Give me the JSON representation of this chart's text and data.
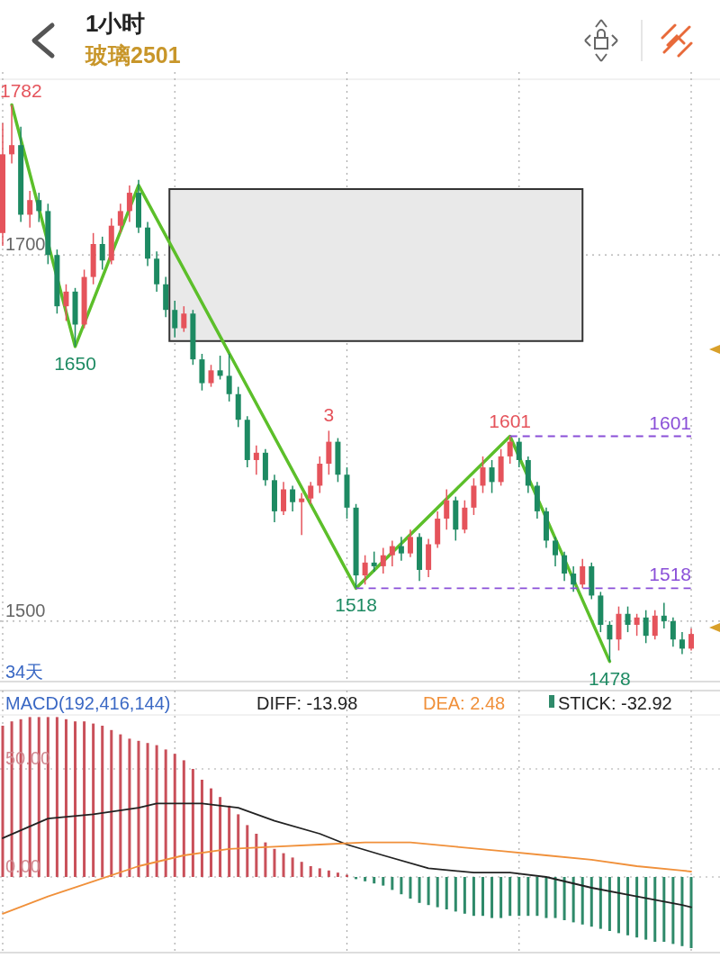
{
  "chart_data": [
    {
      "type": "candlestick",
      "title": "1小时",
      "subtitle": "玻璃2501",
      "categories": [
        null,
        null,
        null,
        null,
        null,
        null,
        null,
        null,
        null,
        null,
        null,
        null,
        null,
        null,
        null,
        null,
        null,
        null,
        null,
        null,
        null,
        null,
        null,
        null,
        null,
        null,
        null,
        null,
        null,
        null,
        null,
        null,
        null,
        null,
        null,
        null,
        null,
        null,
        null,
        null,
        null,
        null,
        null,
        null,
        null,
        null,
        null,
        null,
        null,
        null,
        null,
        null,
        null,
        null,
        null,
        null,
        null,
        null,
        null,
        null,
        null,
        null,
        null,
        null,
        null,
        null,
        null,
        null,
        null,
        null,
        null,
        null,
        null,
        null,
        null,
        null,
        null
      ],
      "ohlc": [
        [
          1712,
          1772,
          1705,
          1755
        ],
        [
          1755,
          1782,
          1750,
          1760
        ],
        [
          1760,
          1770,
          1718,
          1722
        ],
        [
          1722,
          1735,
          1715,
          1730
        ],
        [
          1730,
          1734,
          1718,
          1724
        ],
        [
          1724,
          1728,
          1695,
          1700
        ],
        [
          1700,
          1703,
          1668,
          1672
        ],
        [
          1672,
          1684,
          1664,
          1680
        ],
        [
          1680,
          1682,
          1650,
          1662
        ],
        [
          1662,
          1692,
          1660,
          1688
        ],
        [
          1688,
          1712,
          1684,
          1706
        ],
        [
          1706,
          1710,
          1692,
          1697
        ],
        [
          1697,
          1720,
          1695,
          1716
        ],
        [
          1716,
          1728,
          1712,
          1724
        ],
        [
          1724,
          1738,
          1718,
          1734
        ],
        [
          1734,
          1741,
          1712,
          1715
        ],
        [
          1715,
          1718,
          1694,
          1698
        ],
        [
          1698,
          1702,
          1680,
          1684
        ],
        [
          1684,
          1688,
          1666,
          1670
        ],
        [
          1670,
          1675,
          1655,
          1660
        ],
        [
          1660,
          1672,
          1658,
          1668
        ],
        [
          1668,
          1670,
          1640,
          1643
        ],
        [
          1643,
          1646,
          1626,
          1630
        ],
        [
          1630,
          1640,
          1628,
          1637
        ],
        [
          1637,
          1645,
          1632,
          1634
        ],
        [
          1634,
          1646,
          1620,
          1624
        ],
        [
          1624,
          1628,
          1606,
          1610
        ],
        [
          1610,
          1612,
          1584,
          1588
        ],
        [
          1588,
          1596,
          1580,
          1592
        ],
        [
          1592,
          1594,
          1574,
          1577
        ],
        [
          1577,
          1580,
          1554,
          1560
        ],
        [
          1560,
          1576,
          1558,
          1572
        ],
        [
          1572,
          1574,
          1560,
          1565
        ],
        [
          1565,
          1570,
          1547,
          1567
        ],
        [
          1567,
          1576,
          1564,
          1574
        ],
        [
          1574,
          1590,
          1570,
          1586
        ],
        [
          1586,
          1604,
          1580,
          1598
        ],
        [
          1598,
          1600,
          1576,
          1580
        ],
        [
          1580,
          1584,
          1556,
          1562
        ],
        [
          1562,
          1564,
          1518,
          1525
        ],
        [
          1525,
          1536,
          1520,
          1532
        ],
        [
          1532,
          1538,
          1527,
          1530
        ],
        [
          1530,
          1540,
          1526,
          1536
        ],
        [
          1536,
          1544,
          1530,
          1541
        ],
        [
          1541,
          1546,
          1533,
          1537
        ],
        [
          1537,
          1550,
          1535,
          1546
        ],
        [
          1546,
          1548,
          1522,
          1528
        ],
        [
          1528,
          1545,
          1524,
          1542
        ],
        [
          1542,
          1560,
          1540,
          1556
        ],
        [
          1556,
          1572,
          1550,
          1566
        ],
        [
          1566,
          1568,
          1544,
          1550
        ],
        [
          1550,
          1566,
          1548,
          1562
        ],
        [
          1562,
          1578,
          1558,
          1574
        ],
        [
          1574,
          1590,
          1570,
          1584
        ],
        [
          1584,
          1588,
          1570,
          1576
        ],
        [
          1576,
          1594,
          1574,
          1590
        ],
        [
          1590,
          1601,
          1586,
          1598
        ],
        [
          1598,
          1600,
          1584,
          1588
        ],
        [
          1588,
          1590,
          1570,
          1574
        ],
        [
          1574,
          1576,
          1556,
          1560
        ],
        [
          1560,
          1562,
          1540,
          1544
        ],
        [
          1544,
          1546,
          1530,
          1536
        ],
        [
          1536,
          1538,
          1522,
          1526
        ],
        [
          1526,
          1530,
          1516,
          1520
        ],
        [
          1520,
          1534,
          1518,
          1530
        ],
        [
          1530,
          1532,
          1512,
          1514
        ],
        [
          1514,
          1516,
          1494,
          1498
        ],
        [
          1498,
          1500,
          1478,
          1490
        ],
        [
          1490,
          1508,
          1484,
          1504
        ],
        [
          1504,
          1508,
          1494,
          1498
        ],
        [
          1498,
          1504,
          1492,
          1502
        ],
        [
          1502,
          1506,
          1488,
          1492
        ],
        [
          1492,
          1506,
          1490,
          1503
        ],
        [
          1503,
          1510,
          1496,
          1500
        ],
        [
          1500,
          1502,
          1486,
          1490
        ],
        [
          1490,
          1494,
          1482,
          1485
        ],
        [
          1485,
          1496,
          1484,
          1493
        ]
      ],
      "colors": [
        "#e5535b",
        "#e5535b",
        "#1d8a62",
        "#e5535b",
        "#1d8a62",
        "#1d8a62",
        "#1d8a62",
        "#e5535b",
        "#1d8a62",
        "#e5535b",
        "#e5535b",
        "#1d8a62",
        "#e5535b",
        "#e5535b",
        "#e5535b",
        "#1d8a62",
        "#1d8a62",
        "#1d8a62",
        "#1d8a62",
        "#1d8a62",
        "#e5535b",
        "#1d8a62",
        "#1d8a62",
        "#e5535b",
        "#1d8a62",
        "#1d8a62",
        "#1d8a62",
        "#1d8a62",
        "#e5535b",
        "#1d8a62",
        "#1d8a62",
        "#e5535b",
        "#1d8a62",
        "#e5535b",
        "#e5535b",
        "#e5535b",
        "#e5535b",
        "#1d8a62",
        "#1d8a62",
        "#1d8a62",
        "#e5535b",
        "#1d8a62",
        "#e5535b",
        "#e5535b",
        "#1d8a62",
        "#e5535b",
        "#1d8a62",
        "#e5535b",
        "#e5535b",
        "#e5535b",
        "#1d8a62",
        "#e5535b",
        "#e5535b",
        "#e5535b",
        "#1d8a62",
        "#e5535b",
        "#e5535b",
        "#1d8a62",
        "#1d8a62",
        "#1d8a62",
        "#1d8a62",
        "#1d8a62",
        "#1d8a62",
        "#1d8a62",
        "#e5535b",
        "#1d8a62",
        "#1d8a62",
        "#1d8a62",
        "#e5535b",
        "#1d8a62",
        "#e5535b",
        "#1d8a62",
        "#e5535b",
        "#1d8a62",
        "#1d8a62",
        "#1d8a62",
        "#e5535b"
      ],
      "series": [
        {
          "type": "line",
          "color": "#5cbf2a",
          "values": [
            null,
            1782,
            null,
            null,
            null,
            null,
            null,
            null,
            1650,
            null,
            null,
            null,
            null,
            null,
            null,
            1738,
            null,
            null,
            null,
            null,
            null,
            null,
            null,
            null,
            null,
            null,
            null,
            null,
            null,
            null,
            null,
            null,
            null,
            null,
            null,
            null,
            null,
            null,
            null,
            1518,
            null,
            null,
            null,
            null,
            null,
            null,
            null,
            null,
            null,
            null,
            null,
            null,
            null,
            null,
            null,
            null,
            1601,
            null,
            null,
            null,
            null,
            null,
            null,
            null,
            null,
            null,
            null,
            1478,
            null,
            null,
            null,
            null,
            null,
            null,
            null,
            null,
            null
          ]
        }
      ],
      "bands": [
        {
          "axis": "y",
          "from": 1653,
          "to": 1736,
          "color": "#e9e9e9"
        }
      ],
      "ref_lines": [
        {
          "axis": "y",
          "value": 1601,
          "label": "1601",
          "color": "#8a4fd8",
          "line_style": "dashed"
        },
        {
          "axis": "y",
          "value": 1518,
          "label": "1518",
          "color": "#8a4fd8",
          "line_style": "dashed"
        }
      ],
      "annotations": [
        "1782",
        {
          "text": "1650",
          "y": 1650
        },
        {
          "text": "1601",
          "y": 1601
        },
        {
          "text": "1518",
          "y": 1518
        },
        {
          "text": "1478",
          "y": 1478
        },
        {
          "text": "3",
          "y": 1604
        },
        "34天"
      ],
      "ylim": [
        1467,
        1796
      ],
      "yticks": [
        1700,
        1500
      ],
      "grid": true
    },
    {
      "type": "bar",
      "title": "MACD(192,416,144)",
      "categories": [
        null,
        null,
        null,
        null,
        null,
        null,
        null,
        null,
        null,
        null,
        null,
        null,
        null,
        null,
        null,
        null,
        null,
        null,
        null,
        null,
        null,
        null,
        null,
        null,
        null,
        null,
        null,
        null,
        null,
        null,
        null,
        null,
        null,
        null,
        null,
        null,
        null,
        null,
        null,
        null,
        null,
        null,
        null,
        null,
        null,
        null,
        null,
        null,
        null,
        null,
        null,
        null,
        null,
        null,
        null,
        null,
        null,
        null,
        null,
        null,
        null,
        null,
        null,
        null,
        null,
        null,
        null,
        null,
        null,
        null,
        null,
        null,
        null,
        null,
        null,
        null,
        null
      ],
      "series": [
        {
          "type": "line",
          "name": "DIFF: -13.98",
          "color": "#222222",
          "values": [
            18,
            null,
            null,
            null,
            null,
            27,
            null,
            null,
            null,
            null,
            29,
            null,
            null,
            null,
            null,
            32,
            null,
            34,
            null,
            null,
            null,
            null,
            34,
            null,
            null,
            null,
            32,
            null,
            null,
            null,
            26,
            null,
            null,
            null,
            null,
            20,
            null,
            null,
            15,
            null,
            null,
            null,
            10,
            null,
            null,
            null,
            null,
            4,
            null,
            null,
            null,
            null,
            2,
            null,
            null,
            null,
            2,
            null,
            null,
            null,
            0,
            null,
            null,
            null,
            null,
            -5,
            null,
            null,
            null,
            null,
            -9,
            null,
            null,
            null,
            null,
            -13,
            -13.98
          ]
        },
        {
          "type": "line",
          "name": "DEA: 2.48",
          "color": "#f0903a",
          "values": [
            -17,
            null,
            null,
            null,
            null,
            -9,
            null,
            null,
            null,
            null,
            -2,
            null,
            null,
            null,
            null,
            5,
            null,
            null,
            null,
            null,
            10,
            null,
            null,
            null,
            null,
            13,
            null,
            null,
            null,
            null,
            14,
            null,
            null,
            null,
            null,
            15,
            null,
            null,
            null,
            null,
            16,
            null,
            null,
            null,
            null,
            16,
            null,
            null,
            null,
            null,
            14,
            null,
            null,
            null,
            null,
            12,
            null,
            null,
            null,
            null,
            10,
            null,
            null,
            null,
            null,
            8,
            null,
            null,
            null,
            null,
            5,
            null,
            null,
            null,
            null,
            3,
            2.48
          ]
        },
        {
          "type": "bar",
          "name": "STICK: -32.92",
          "color": "#222222",
          "values": [
            70,
            72,
            73,
            74,
            74,
            74,
            74,
            73,
            72,
            72,
            71,
            70,
            68,
            66,
            64,
            63,
            62,
            61,
            59,
            57,
            54,
            50,
            45,
            41,
            37,
            33,
            29,
            24,
            20,
            16,
            13,
            11,
            9,
            7,
            5,
            4,
            3,
            2,
            1,
            -1,
            -2,
            -3,
            -4,
            -6,
            -8,
            -10,
            -12,
            -13,
            -14,
            -15,
            -16,
            -17,
            -18,
            -18,
            -19,
            -19,
            -18,
            -18,
            -18,
            -18,
            -19,
            -19,
            -20,
            -21,
            -22,
            -23,
            -24,
            -25,
            -26,
            -27,
            -28,
            -29,
            -30,
            -30,
            -31,
            -32,
            -32.92
          ],
          "colors": [
            "#c9505a",
            "#c9505a",
            "#c9505a",
            "#c9505a",
            "#c9505a",
            "#c9505a",
            "#c9505a",
            "#c9505a",
            "#c9505a",
            "#c9505a",
            "#c9505a",
            "#c9505a",
            "#c9505a",
            "#c9505a",
            "#c9505a",
            "#c9505a",
            "#c9505a",
            "#c9505a",
            "#c9505a",
            "#c9505a",
            "#c9505a",
            "#c9505a",
            "#c9505a",
            "#c9505a",
            "#c9505a",
            "#c9505a",
            "#c9505a",
            "#c9505a",
            "#c9505a",
            "#c9505a",
            "#c9505a",
            "#c9505a",
            "#c9505a",
            "#c9505a",
            "#c9505a",
            "#c9505a",
            "#c9505a",
            "#c9505a",
            "#c9505a",
            "#2f8a6a",
            "#2f8a6a",
            "#2f8a6a",
            "#2f8a6a",
            "#2f8a6a",
            "#2f8a6a",
            "#2f8a6a",
            "#2f8a6a",
            "#2f8a6a",
            "#2f8a6a",
            "#2f8a6a",
            "#2f8a6a",
            "#2f8a6a",
            "#2f8a6a",
            "#2f8a6a",
            "#2f8a6a",
            "#2f8a6a",
            "#2f8a6a",
            "#2f8a6a",
            "#2f8a6a",
            "#2f8a6a",
            "#2f8a6a",
            "#2f8a6a",
            "#2f8a6a",
            "#2f8a6a",
            "#2f8a6a",
            "#2f8a6a",
            "#2f8a6a",
            "#2f8a6a",
            "#2f8a6a",
            "#2f8a6a",
            "#2f8a6a",
            "#2f8a6a",
            "#2f8a6a",
            "#2f8a6a",
            "#2f8a6a",
            "#2f8a6a",
            "#2f8a6a"
          ]
        }
      ],
      "ylim": [
        -35,
        75
      ],
      "yticks": [
        {
          "value": 50,
          "label": "50.00"
        },
        {
          "value": 0,
          "label": "0.00"
        }
      ],
      "grid": true,
      "legend": "top"
    }
  ]
}
